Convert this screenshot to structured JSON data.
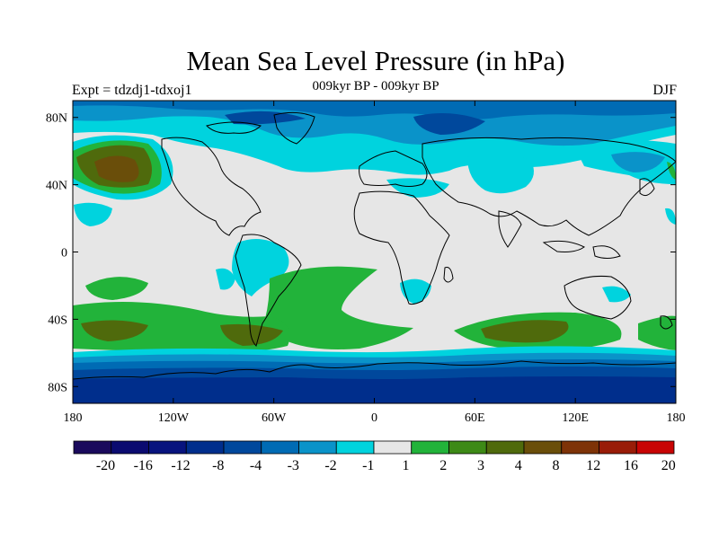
{
  "title": "Mean Sea Level Pressure (in hPa)",
  "subtitle": "009kyr BP - 009kyr BP",
  "experiment": "Expt = tdzdj1-tdxoj1",
  "season": "DJF",
  "lat_ticks": [
    "80N",
    "40N",
    "0",
    "40S",
    "80S"
  ],
  "lon_ticks": [
    "180",
    "120W",
    "60W",
    "0",
    "60E",
    "120E",
    "180"
  ],
  "colorbar": {
    "labels": [
      "-20",
      "-16",
      "-12",
      "-8",
      "-4",
      "-3",
      "-2",
      "-1",
      "1",
      "2",
      "3",
      "4",
      "8",
      "12",
      "16",
      "20"
    ],
    "colors": [
      "#1a0a5c",
      "#0b0b70",
      "#08147e",
      "#002e8c",
      "#00489c",
      "#006bb4",
      "#0a93c9",
      "#00d3de",
      "#e6e6e6",
      "#22b33a",
      "#3d8a16",
      "#4f6a0c",
      "#6a4e0a",
      "#7e3308",
      "#991c08",
      "#c80404"
    ]
  },
  "map": {
    "background": "#e6e6e6",
    "palette": {
      "lightblue": "#00d3de",
      "midblue": "#0a93c9",
      "blue": "#006bb4",
      "darkblue": "#00489c",
      "navy": "#002e8c",
      "green": "#22b33a",
      "olive": "#4f6a0c",
      "brown": "#6a4e0a"
    }
  }
}
